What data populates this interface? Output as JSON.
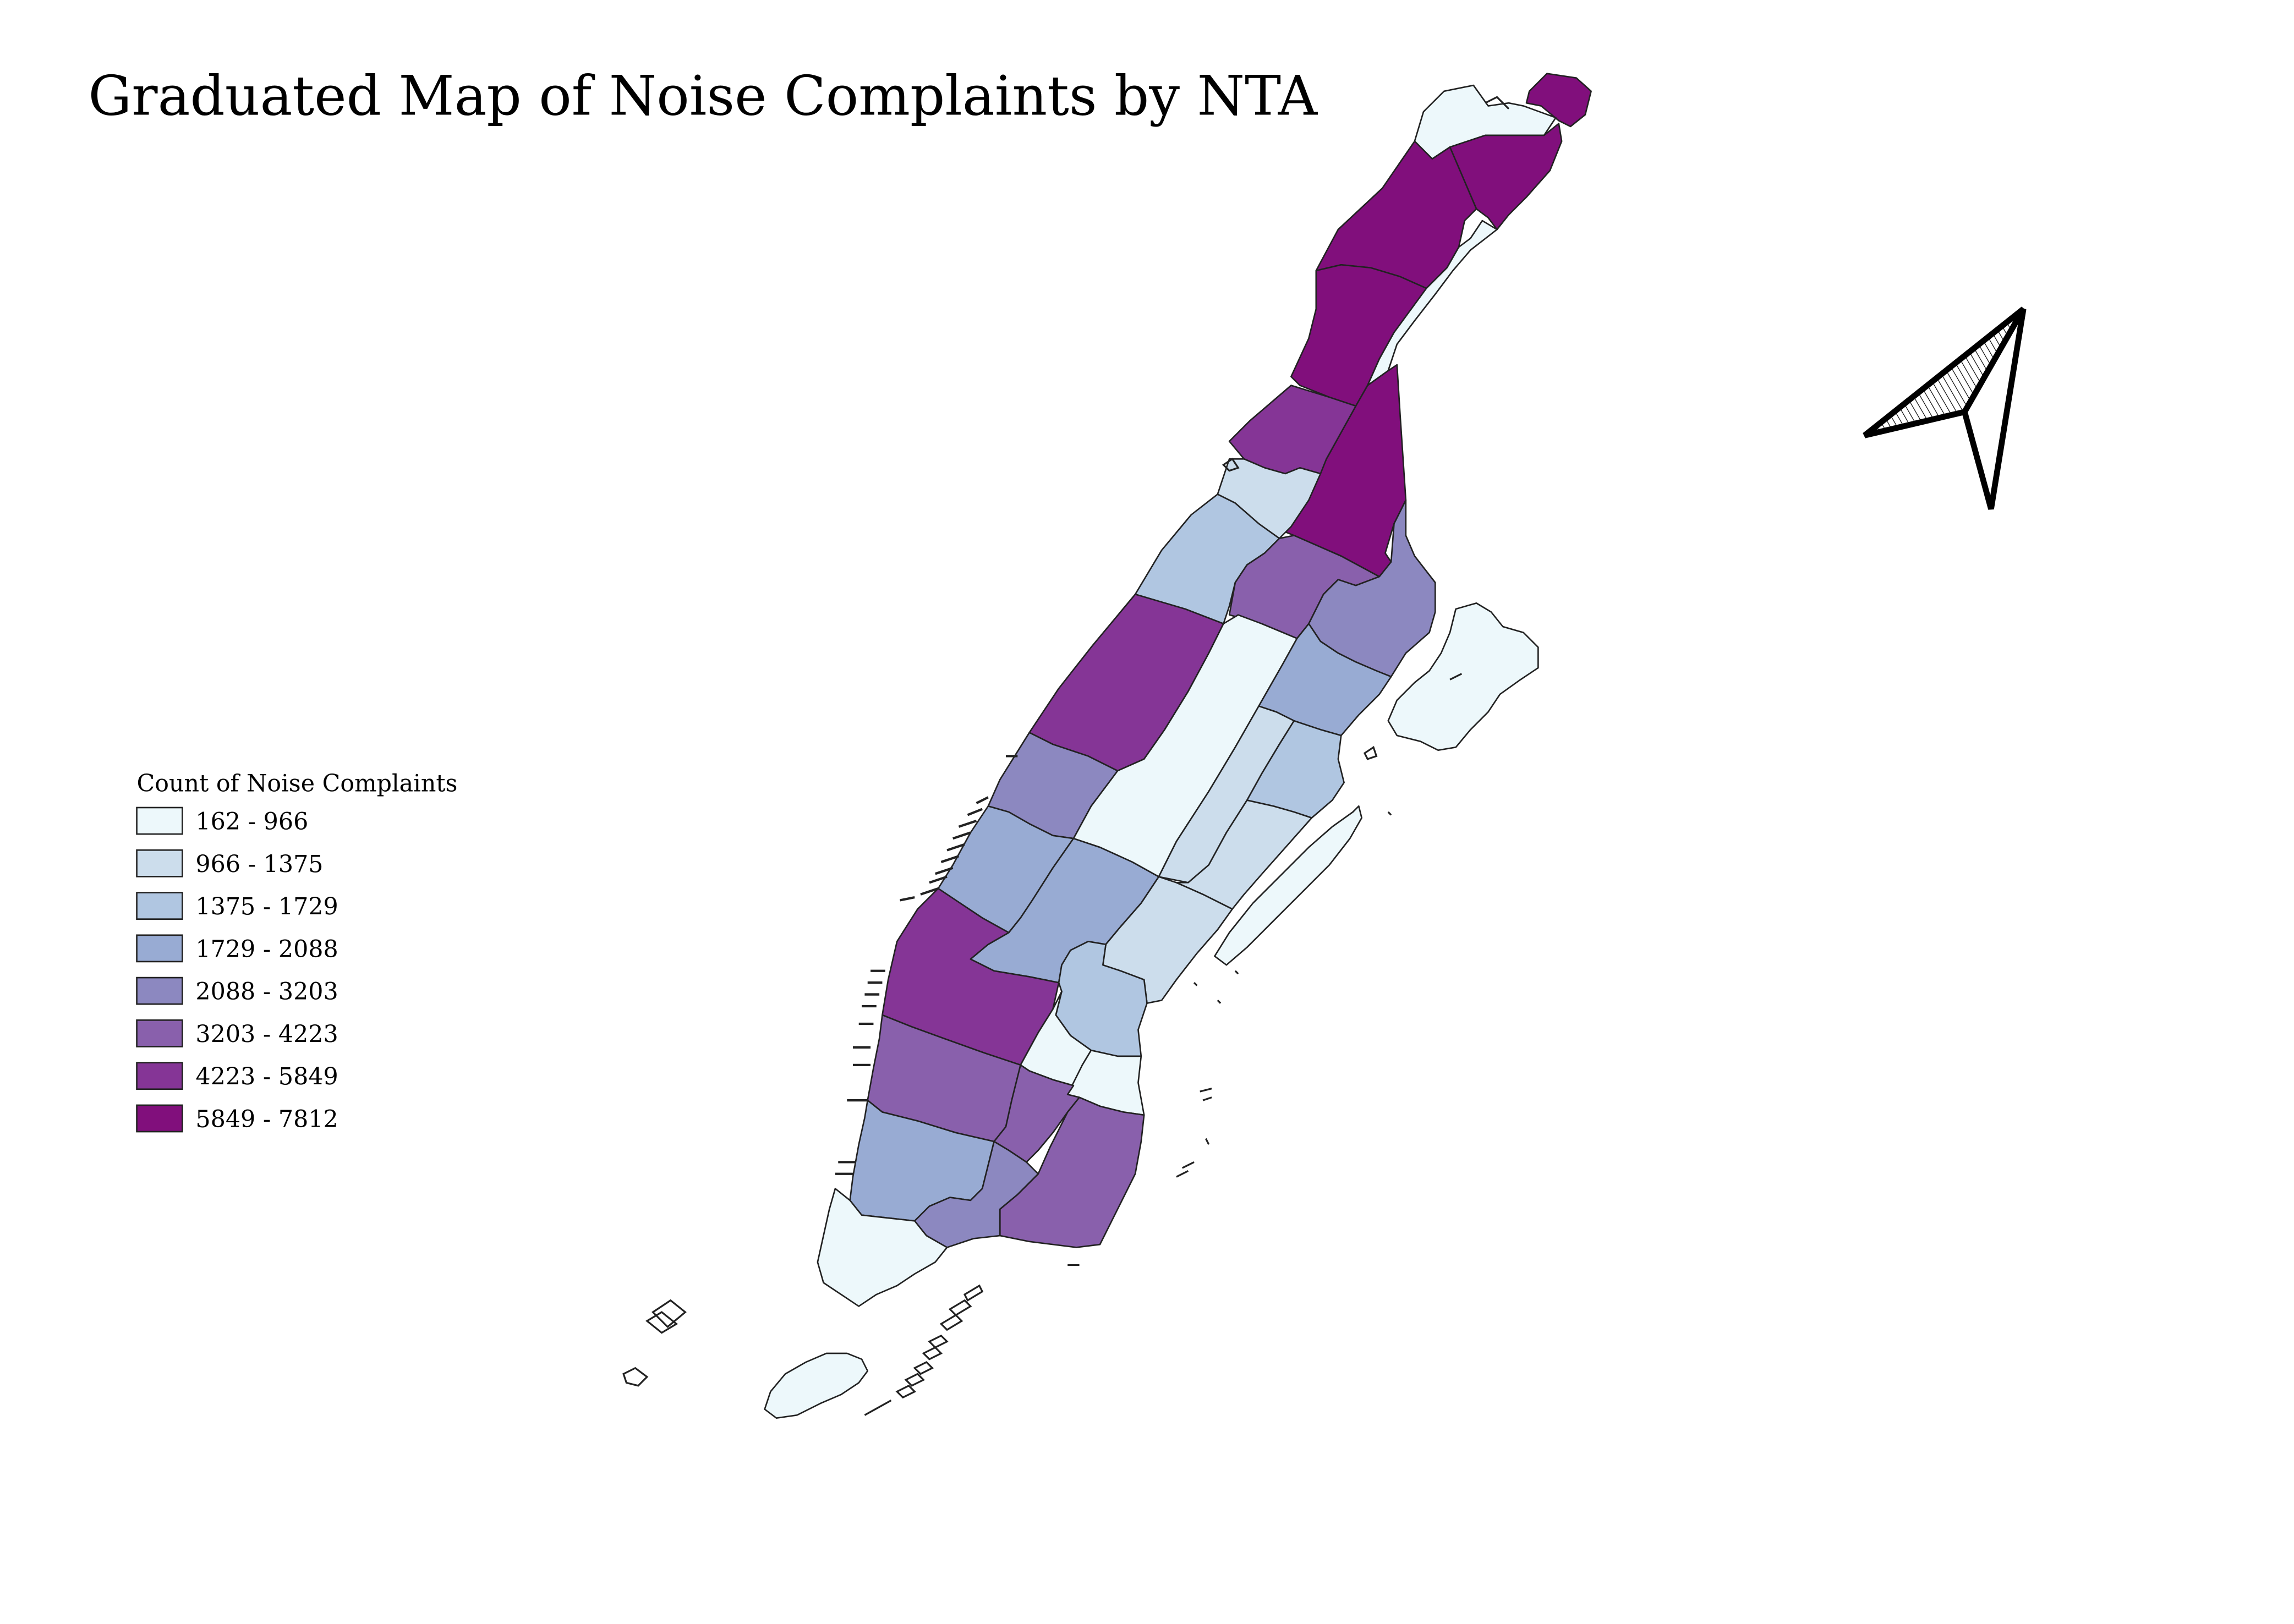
{
  "map": {
    "title": "Graduated Map of Noise Complaints by NTA",
    "legend": {
      "title": "Count of Noise Complaints",
      "classes": [
        {
          "label": "162 - 966",
          "color": "#edf8fb"
        },
        {
          "label": "966 - 1375",
          "color": "#ccddec"
        },
        {
          "label": "1375 - 1729",
          "color": "#b0c6e1"
        },
        {
          "label": "1729 - 2088",
          "color": "#98abd3"
        },
        {
          "label": "2088 - 3203",
          "color": "#8c88c0"
        },
        {
          "label": "3203 - 4223",
          "color": "#8960ac"
        },
        {
          "label": "4223 - 5849",
          "color": "#853596"
        },
        {
          "label": "5849 - 7812",
          "color": "#810f7c"
        }
      ]
    },
    "north_arrow_icon": "north-arrow-icon",
    "stroke_color": "#222222",
    "background_color": "#ffffff"
  }
}
